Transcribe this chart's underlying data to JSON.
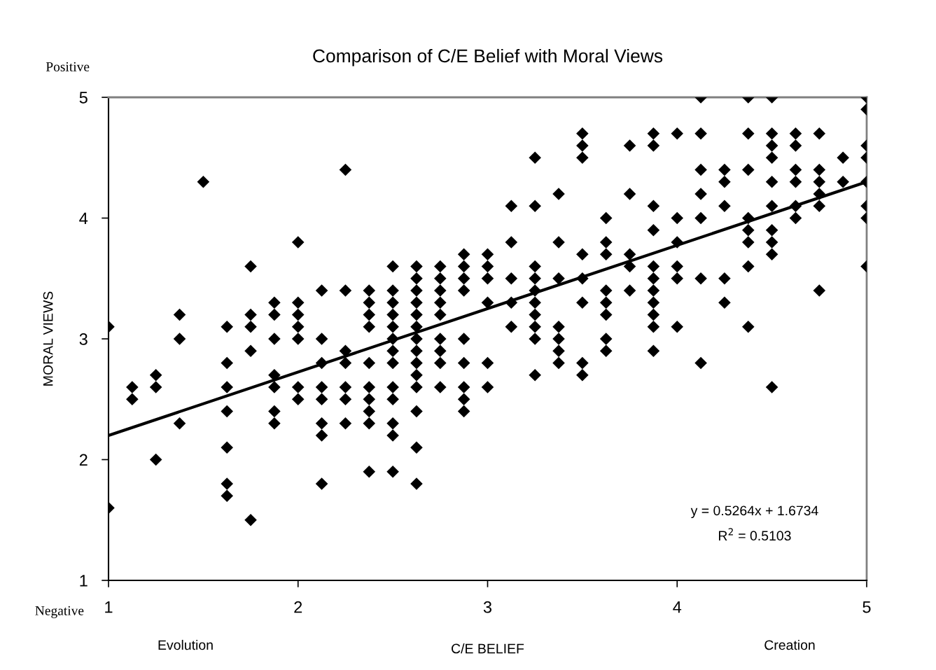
{
  "chart_data": {
    "type": "scatter",
    "title": "Comparison of C/E Belief with Moral Views",
    "xlabel": "C/E BELIEF",
    "ylabel": "MORAL VIEWS",
    "xlim": [
      1,
      5
    ],
    "ylim": [
      1,
      5
    ],
    "xticks": [
      1,
      2,
      3,
      4,
      5
    ],
    "yticks": [
      1,
      2,
      3,
      4,
      5
    ],
    "grid": false,
    "legend": false,
    "marker": "diamond",
    "annotations": [
      "Positive",
      "Negative",
      "Evolution",
      "Creation",
      "y = 0.5264x + 1.6734",
      "R$^{2}$ = 0.5103"
    ],
    "series": [
      {
        "color": "#000000",
        "x": [
          1,
          1,
          1.125,
          1.125,
          1.25,
          1.25,
          1.25,
          1.375,
          1.375,
          1.375,
          1.5,
          1.625,
          1.625,
          1.625,
          1.625,
          1.625,
          1.625,
          1.625,
          1.75,
          1.75,
          1.75,
          1.75,
          1.75,
          1.875,
          1.875,
          1.875,
          1.875,
          1.875,
          1.875,
          1.875,
          2,
          2,
          2,
          2,
          2,
          2,
          2,
          2.125,
          2.125,
          2.125,
          2.125,
          2.125,
          2.125,
          2.125,
          2.125,
          2.25,
          2.25,
          2.25,
          2.25,
          2.25,
          2.25,
          2.25,
          2.375,
          2.375,
          2.375,
          2.375,
          2.375,
          2.375,
          2.375,
          2.375,
          2.375,
          2.375,
          2.5,
          2.5,
          2.5,
          2.5,
          2.5,
          2.5,
          2.5,
          2.5,
          2.5,
          2.5,
          2.5,
          2.5,
          2.5,
          2.625,
          2.625,
          2.625,
          2.625,
          2.625,
          2.625,
          2.625,
          2.625,
          2.625,
          2.625,
          2.625,
          2.625,
          2.625,
          2.625,
          2.75,
          2.75,
          2.75,
          2.75,
          2.75,
          2.75,
          2.75,
          2.75,
          2.75,
          2.875,
          2.875,
          2.875,
          2.875,
          2.875,
          2.875,
          2.875,
          2.875,
          2.875,
          3,
          3,
          3,
          3,
          3,
          3,
          3.125,
          3.125,
          3.125,
          3.125,
          3.125,
          3.25,
          3.25,
          3.25,
          3.25,
          3.25,
          3.25,
          3.25,
          3.25,
          3.25,
          3.25,
          3.375,
          3.375,
          3.375,
          3.375,
          3.375,
          3.375,
          3.375,
          3.5,
          3.5,
          3.5,
          3.5,
          3.5,
          3.5,
          3.5,
          3.5,
          3.625,
          3.625,
          3.625,
          3.625,
          3.625,
          3.625,
          3.625,
          3.625,
          3.75,
          3.75,
          3.75,
          3.75,
          3.75,
          3.875,
          3.875,
          3.875,
          3.875,
          3.875,
          3.875,
          3.875,
          3.875,
          3.875,
          3.875,
          3.875,
          4,
          4,
          4,
          4,
          4,
          4,
          4.125,
          4.125,
          4.125,
          4.125,
          4.125,
          4.125,
          4.125,
          4.25,
          4.25,
          4.25,
          4.25,
          4.25,
          4.375,
          4.375,
          4.375,
          4.375,
          4.375,
          4.375,
          4.375,
          4.375,
          4.5,
          4.5,
          4.5,
          4.5,
          4.5,
          4.5,
          4.5,
          4.5,
          4.5,
          4.5,
          4.625,
          4.625,
          4.625,
          4.625,
          4.625,
          4.625,
          4.75,
          4.75,
          4.75,
          4.75,
          4.75,
          4.75,
          4.875,
          4.875,
          5,
          5,
          5,
          5,
          5,
          5,
          5,
          5
        ],
        "values": [
          3.1,
          1.6,
          2.6,
          2.5,
          2.7,
          2.6,
          2.0,
          3.2,
          3.0,
          2.3,
          4.3,
          3.1,
          2.8,
          2.6,
          2.4,
          2.1,
          1.8,
          1.7,
          3.6,
          3.2,
          3.1,
          2.9,
          1.5,
          3.3,
          3.2,
          3.0,
          2.7,
          2.6,
          2.4,
          2.3,
          3.8,
          3.3,
          3.2,
          3.1,
          3.0,
          2.6,
          2.5,
          3.4,
          3.0,
          2.8,
          2.6,
          2.5,
          2.3,
          2.2,
          1.8,
          4.4,
          3.4,
          2.9,
          2.8,
          2.6,
          2.5,
          2.3,
          3.4,
          3.3,
          3.2,
          3.1,
          2.8,
          2.6,
          2.5,
          2.4,
          2.3,
          1.9,
          3.6,
          3.4,
          3.3,
          3.2,
          3.1,
          3.0,
          2.9,
          2.8,
          2.6,
          2.5,
          2.3,
          2.2,
          1.9,
          3.6,
          3.5,
          3.4,
          3.3,
          3.2,
          3.1,
          3.0,
          2.9,
          2.8,
          2.7,
          2.6,
          2.4,
          2.1,
          1.8,
          3.6,
          3.5,
          3.4,
          3.3,
          3.2,
          3.0,
          2.9,
          2.8,
          2.6,
          3.7,
          3.6,
          3.5,
          3.4,
          3.0,
          2.8,
          2.6,
          2.5,
          2.4,
          3.7,
          3.6,
          3.5,
          3.3,
          2.8,
          2.6,
          4.1,
          3.8,
          3.5,
          3.3,
          3.1,
          4.5,
          4.1,
          3.6,
          3.5,
          3.4,
          3.3,
          3.2,
          3.1,
          3.0,
          2.7,
          4.2,
          3.8,
          3.5,
          3.1,
          3.0,
          2.9,
          2.8,
          4.7,
          4.6,
          4.5,
          3.7,
          3.5,
          3.3,
          2.8,
          2.7,
          4.0,
          3.8,
          3.7,
          3.4,
          3.3,
          3.2,
          3.0,
          2.9,
          4.6,
          4.2,
          3.7,
          3.6,
          3.4,
          4.7,
          4.6,
          4.1,
          3.9,
          3.6,
          3.5,
          3.4,
          3.3,
          3.2,
          3.1,
          2.9,
          4.7,
          4.0,
          3.8,
          3.6,
          3.5,
          3.1,
          5.0,
          4.7,
          4.4,
          4.2,
          4.0,
          3.5,
          2.8,
          4.4,
          4.3,
          4.1,
          3.5,
          3.3,
          5.0,
          4.7,
          4.4,
          4.0,
          3.9,
          3.8,
          3.6,
          3.1,
          5.0,
          4.7,
          4.6,
          4.5,
          4.3,
          4.1,
          3.9,
          3.8,
          3.7,
          2.6,
          4.7,
          4.6,
          4.4,
          4.3,
          4.1,
          4.0,
          4.7,
          4.4,
          4.3,
          4.2,
          4.1,
          3.4,
          4.5,
          4.3,
          5.0,
          4.9,
          4.6,
          4.5,
          4.3,
          4.1,
          4.0,
          3.6
        ]
      },
      {
        "type": "line",
        "color": "#000000",
        "marker": "none",
        "line_style": "solid",
        "x": [
          1,
          5
        ],
        "values": [
          2.2,
          4.3
        ]
      }
    ]
  }
}
